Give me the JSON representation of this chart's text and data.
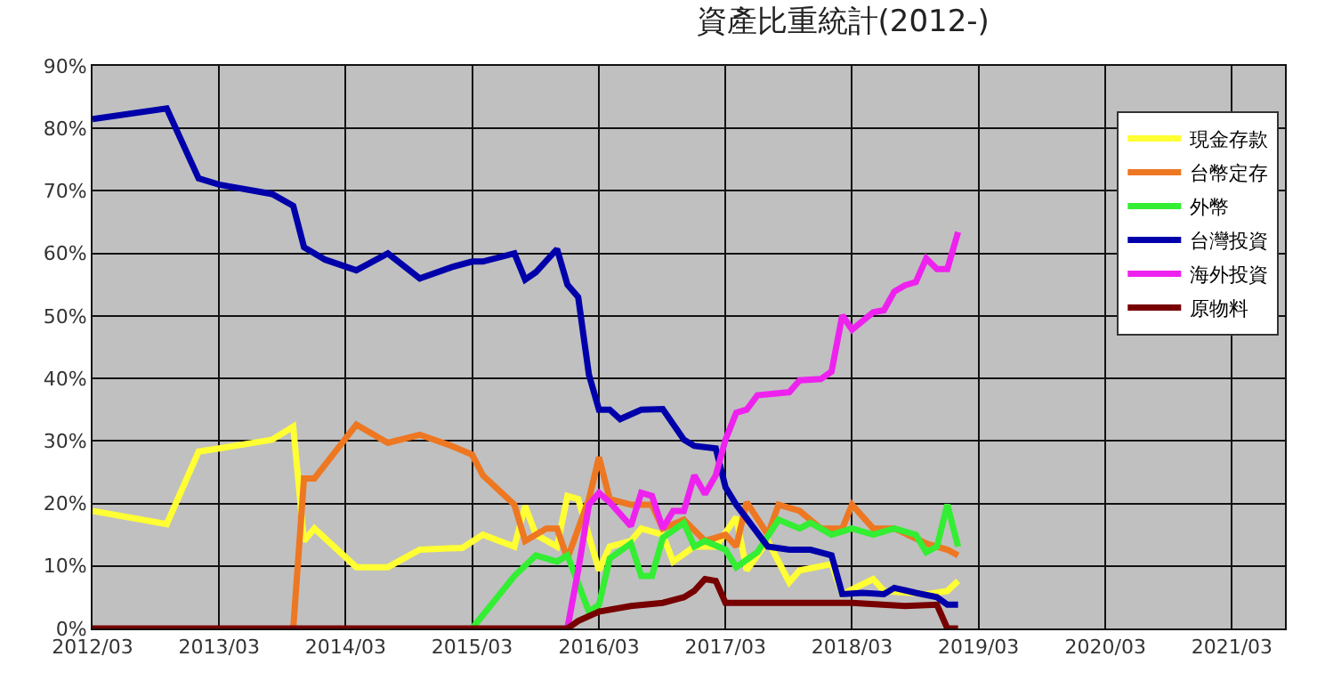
{
  "chart_data": {
    "type": "line",
    "title": "資產比重統計(2012-)",
    "xlim": [
      "2012-03",
      "2021-08"
    ],
    "xticks": [
      {
        "value": "2012-03",
        "label": "2012/03"
      },
      {
        "value": "2013-03",
        "label": "2013/03"
      },
      {
        "value": "2014-03",
        "label": "2014/03"
      },
      {
        "value": "2015-03",
        "label": "2015/03"
      },
      {
        "value": "2016-03",
        "label": "2016/03"
      },
      {
        "value": "2017-03",
        "label": "2017/03"
      },
      {
        "value": "2018-03",
        "label": "2018/03"
      },
      {
        "value": "2019-03",
        "label": "2019/03"
      },
      {
        "value": "2020-03",
        "label": "2020/03"
      },
      {
        "value": "2021-03",
        "label": "2021/03"
      }
    ],
    "ylim": [
      0,
      90
    ],
    "yticks": [
      {
        "value": 0,
        "label": "0%"
      },
      {
        "value": 10,
        "label": "10%"
      },
      {
        "value": 20,
        "label": "20%"
      },
      {
        "value": 30,
        "label": "30%"
      },
      {
        "value": 40,
        "label": "40%"
      },
      {
        "value": 50,
        "label": "50%"
      },
      {
        "value": 60,
        "label": "60%"
      },
      {
        "value": 70,
        "label": "70%"
      },
      {
        "value": 80,
        "label": "80%"
      },
      {
        "value": 90,
        "label": "90%"
      }
    ],
    "grid": true,
    "legend": "top right",
    "marker": "none",
    "line_style": "solid",
    "series": [
      {
        "name": "現金存款",
        "color": "#ffff33",
        "x": [
          "2012-03",
          "2012-10",
          "2013-01",
          "2013-03",
          "2013-08",
          "2013-10",
          "2013-11",
          "2013-12",
          "2014-04",
          "2014-07",
          "2014-10",
          "2015-02",
          "2015-04",
          "2015-07",
          "2015-08",
          "2015-09",
          "2015-11",
          "2015-12",
          "2016-01",
          "2016-03",
          "2016-04",
          "2016-06",
          "2016-07",
          "2016-09",
          "2016-10",
          "2016-12",
          "2017-02",
          "2017-04",
          "2017-05",
          "2017-07",
          "2017-09",
          "2017-10",
          "2018-01",
          "2018-02",
          "2018-05",
          "2018-06",
          "2018-10",
          "2018-12",
          "2019-01"
        ],
        "values": [
          18.8,
          16.7,
          28.3,
          28.8,
          30.2,
          32.3,
          14,
          16,
          9.8,
          9.8,
          12.6,
          12.9,
          15,
          13.1,
          19.6,
          15,
          13.1,
          21.2,
          20.7,
          9.3,
          13.1,
          14,
          16,
          15,
          10.7,
          13.1,
          13.1,
          17.8,
          9.3,
          14,
          7.4,
          9.3,
          10.3,
          5.5,
          7.9,
          6,
          5.5,
          6,
          7.6
        ]
      },
      {
        "name": "台幣定存",
        "color": "#ee7722",
        "x": [
          "2013-10",
          "2013-11",
          "2013-12",
          "2014-04",
          "2014-07",
          "2014-10",
          "2015-01",
          "2015-03",
          "2015-04",
          "2015-07",
          "2015-08",
          "2015-10",
          "2015-11",
          "2015-12",
          "2016-02",
          "2016-03",
          "2016-04",
          "2016-06",
          "2016-08",
          "2016-09",
          "2016-11",
          "2017-01",
          "2017-03",
          "2017-04",
          "2017-05",
          "2017-07",
          "2017-08",
          "2017-10",
          "2017-12",
          "2018-02",
          "2018-03",
          "2018-05",
          "2018-07",
          "2018-10",
          "2018-12",
          "2019-01"
        ],
        "values": [
          0,
          24,
          24,
          32.6,
          29.7,
          31,
          29.2,
          27.8,
          24.5,
          19.8,
          14,
          16,
          16,
          11.2,
          20.7,
          27.4,
          20.7,
          19.8,
          19.8,
          16,
          17.4,
          14,
          15,
          13.1,
          20.2,
          15,
          19.8,
          18.8,
          16,
          16,
          19.8,
          16,
          16,
          13.6,
          12.6,
          11.7
        ]
      },
      {
        "name": "外幣",
        "color": "#33ee33",
        "x": [
          "2015-03",
          "2015-07",
          "2015-09",
          "2015-11",
          "2015-12",
          "2016-02",
          "2016-03",
          "2016-04",
          "2016-06",
          "2016-07",
          "2016-08",
          "2016-09",
          "2016-11",
          "2016-12",
          "2017-01",
          "2017-03",
          "2017-04",
          "2017-06",
          "2017-08",
          "2017-10",
          "2017-11",
          "2018-01",
          "2018-03",
          "2018-05",
          "2018-07",
          "2018-09",
          "2018-10",
          "2018-11",
          "2018-12",
          "2019-01"
        ],
        "values": [
          0,
          8.4,
          11.7,
          10.7,
          11.7,
          2.7,
          3.8,
          11.2,
          13.6,
          8.4,
          8.4,
          14.5,
          16.9,
          13.1,
          14,
          12.6,
          9.8,
          12.2,
          17.4,
          16,
          16.9,
          15,
          16,
          15,
          16,
          15,
          12.2,
          13.1,
          19.8,
          13.1
        ]
      },
      {
        "name": "台灣投資",
        "color": "#0000aa",
        "x": [
          "2012-03",
          "2012-10",
          "2013-01",
          "2013-03",
          "2013-08",
          "2013-10",
          "2013-11",
          "2014-01",
          "2014-04",
          "2014-07",
          "2014-10",
          "2015-01",
          "2015-03",
          "2015-04",
          "2015-07",
          "2015-08",
          "2015-09",
          "2015-11",
          "2015-12",
          "2016-01",
          "2016-02",
          "2016-03",
          "2016-04",
          "2016-05",
          "2016-07",
          "2016-09",
          "2016-11",
          "2016-12",
          "2017-02",
          "2017-03",
          "2017-04",
          "2017-07",
          "2017-09",
          "2017-11",
          "2018-01",
          "2018-02",
          "2018-04",
          "2018-06",
          "2018-07",
          "2018-09",
          "2018-11",
          "2018-12",
          "2019-01"
        ],
        "values": [
          81.5,
          83.2,
          72,
          71,
          69.5,
          67.6,
          61,
          59,
          57.3,
          60,
          56,
          57.8,
          58.7,
          58.7,
          60,
          55.8,
          57,
          60.7,
          55,
          53,
          40.6,
          35,
          35,
          33.5,
          35,
          35.1,
          30.2,
          29.2,
          28.8,
          22.6,
          19.8,
          13.1,
          12.6,
          12.6,
          11.7,
          5.5,
          5.7,
          5.5,
          6.5,
          5.7,
          5,
          3.8,
          3.8
        ]
      },
      {
        "name": "海外投資",
        "color": "#ee22ee",
        "x": [
          "2015-12",
          "2016-01",
          "2016-02",
          "2016-03",
          "2016-04",
          "2016-06",
          "2016-07",
          "2016-08",
          "2016-09",
          "2016-10",
          "2016-11",
          "2016-12",
          "2017-01",
          "2017-02",
          "2017-03",
          "2017-04",
          "2017-05",
          "2017-06",
          "2017-09",
          "2017-10",
          "2017-12",
          "2018-01",
          "2018-02",
          "2018-03",
          "2018-05",
          "2018-06",
          "2018-07",
          "2018-08",
          "2018-09",
          "2018-10",
          "2018-11",
          "2018-12",
          "2019-01"
        ],
        "values": [
          0,
          9.3,
          19.8,
          21.7,
          20.2,
          16.4,
          21.7,
          21.2,
          16,
          18.8,
          18.8,
          24.5,
          21.5,
          24.5,
          30.2,
          34.5,
          35,
          37.3,
          37.8,
          39.7,
          39.9,
          41.1,
          50.1,
          47.8,
          50.6,
          50.9,
          53.9,
          54.9,
          55.4,
          59.2,
          57.5,
          57.5,
          63.4
        ]
      },
      {
        "name": "原物料",
        "color": "#770000",
        "x": [
          "2012-03",
          "2015-12",
          "2016-01",
          "2016-03",
          "2016-06",
          "2016-09",
          "2016-11",
          "2016-12",
          "2017-01",
          "2017-02",
          "2017-03",
          "2017-10",
          "2018-03",
          "2018-08",
          "2018-11",
          "2018-12",
          "2019-01"
        ],
        "values": [
          0,
          0,
          1.2,
          2.7,
          3.6,
          4.1,
          5,
          6,
          7.9,
          7.6,
          4.1,
          4.1,
          4.1,
          3.6,
          3.8,
          0,
          0
        ]
      }
    ]
  }
}
